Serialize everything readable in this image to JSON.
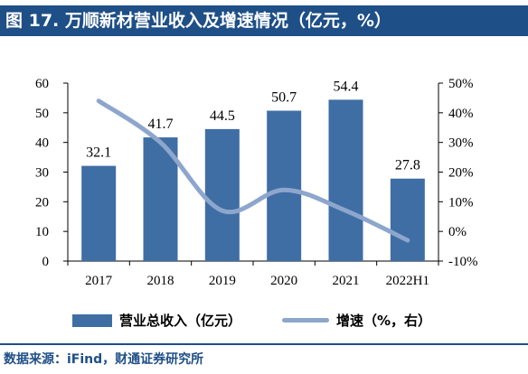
{
  "title": "图 17. 万顺新材营业收入及增速情况（亿元，%）",
  "colors": {
    "title_bg": "#1e4f86",
    "bar": "#3f6ea5",
    "line": "#8da6cc",
    "source": "#1e4f86"
  },
  "chart_data": {
    "type": "bar",
    "categories": [
      "2017",
      "2018",
      "2019",
      "2020",
      "2021",
      "2022H1"
    ],
    "series": [
      {
        "name": "营业总收入（亿元）",
        "type": "bar",
        "axis": "left",
        "values": [
          32.1,
          41.7,
          44.5,
          50.7,
          54.4,
          27.8
        ]
      },
      {
        "name": "增速（%，右）",
        "type": "line",
        "axis": "right",
        "values": [
          44,
          30,
          7,
          14,
          7,
          -3
        ]
      }
    ],
    "data_labels": [
      "32.1",
      "41.7",
      "44.5",
      "50.7",
      "54.4",
      "27.8"
    ],
    "ylim": [
      0,
      60
    ],
    "yticks": [
      "0",
      "10",
      "20",
      "30",
      "40",
      "50",
      "60"
    ],
    "y2lim": [
      -10,
      50
    ],
    "y2ticks": [
      "-10%",
      "0%",
      "10%",
      "20%",
      "30%",
      "40%",
      "50%"
    ],
    "grid": false,
    "legend_position": "bottom"
  },
  "source": "数据来源：iFind，财通证券研究所"
}
